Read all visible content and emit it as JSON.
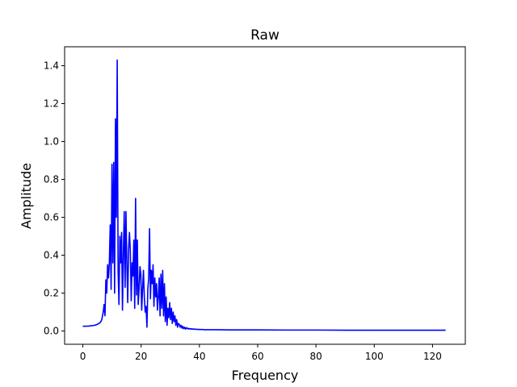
{
  "chart_data": {
    "type": "line",
    "title": "Raw",
    "xlabel": "Frequency",
    "ylabel": "Amplitude",
    "xlim": [
      -6.25,
      131.25
    ],
    "ylim": [
      -0.07,
      1.5
    ],
    "xticks": [
      0,
      20,
      40,
      60,
      80,
      100,
      120
    ],
    "yticks": [
      0.0,
      0.2,
      0.4,
      0.6,
      0.8,
      1.0,
      1.2,
      1.4
    ],
    "grid": false,
    "colors": {
      "line": "#0000ff",
      "axes": "#000000",
      "background": "#ffffff"
    },
    "series": [
      {
        "x": [
          0,
          2,
          4,
          5,
          6,
          6.5,
          7,
          7.3,
          7.6,
          7.9,
          8.2,
          8.5,
          8.8,
          9.1,
          9.4,
          9.7,
          10,
          10.3,
          10.6,
          10.9,
          11.2,
          11.5,
          11.8,
          12.1,
          12.4,
          12.7,
          13,
          13.3,
          13.6,
          13.9,
          14.2,
          14.5,
          14.8,
          15.1,
          15.4,
          15.7,
          16,
          16.3,
          16.6,
          16.9,
          17.2,
          17.5,
          17.8,
          18.1,
          18.4,
          18.7,
          19,
          19.3,
          19.6,
          19.9,
          20.2,
          20.5,
          20.8,
          21.1,
          21.4,
          21.7,
          22,
          22.3,
          22.6,
          22.9,
          23.2,
          23.5,
          23.8,
          24.1,
          24.4,
          24.7,
          25,
          25.3,
          25.6,
          25.9,
          26.2,
          26.5,
          26.8,
          27.1,
          27.4,
          27.7,
          28,
          28.3,
          28.6,
          28.9,
          29.2,
          29.5,
          29.8,
          30.1,
          30.4,
          30.7,
          31,
          31.3,
          31.6,
          31.9,
          32.2,
          32.5,
          32.8,
          33.1,
          33.4,
          33.7,
          34,
          34.3,
          34.6,
          34.9,
          35.2,
          35.5,
          35.8,
          36.1,
          36.4,
          36.7,
          37,
          37.3,
          37.6,
          37.9,
          38.2,
          38.5,
          38.8,
          39.1,
          39.4,
          39.7,
          40,
          40.3,
          40.6,
          40.9,
          41.2,
          41.5,
          41.8,
          42.1,
          42.4,
          42.7,
          43,
          44,
          46,
          50,
          60,
          70,
          80,
          90,
          100,
          110,
          120,
          124.5
        ],
        "y": [
          0.025,
          0.026,
          0.03,
          0.035,
          0.045,
          0.06,
          0.1,
          0.14,
          0.08,
          0.27,
          0.2,
          0.35,
          0.28,
          0.36,
          0.56,
          0.22,
          0.88,
          0.36,
          0.89,
          0.2,
          1.12,
          0.6,
          1.43,
          0.32,
          0.14,
          0.5,
          0.36,
          0.52,
          0.11,
          0.4,
          0.63,
          0.23,
          0.63,
          0.36,
          0.15,
          0.43,
          0.52,
          0.42,
          0.16,
          0.36,
          0.29,
          0.48,
          0.12,
          0.7,
          0.19,
          0.48,
          0.14,
          0.22,
          0.34,
          0.3,
          0.11,
          0.22,
          0.32,
          0.18,
          0.1,
          0.13,
          0.02,
          0.22,
          0.28,
          0.54,
          0.17,
          0.32,
          0.25,
          0.35,
          0.13,
          0.28,
          0.18,
          0.25,
          0.11,
          0.18,
          0.28,
          0.08,
          0.3,
          0.12,
          0.32,
          0.08,
          0.25,
          0.05,
          0.18,
          0.03,
          0.12,
          0.07,
          0.15,
          0.06,
          0.12,
          0.04,
          0.1,
          0.05,
          0.08,
          0.03,
          0.06,
          0.02,
          0.04,
          0.035,
          0.02,
          0.03,
          0.015,
          0.025,
          0.012,
          0.02,
          0.01,
          0.018,
          0.012,
          0.015,
          0.01,
          0.013,
          0.01,
          0.012,
          0.009,
          0.011,
          0.009,
          0.01,
          0.009,
          0.009,
          0.008,
          0.009,
          0.008,
          0.008,
          0.008,
          0.008,
          0.008,
          0.007,
          0.007,
          0.007,
          0.007,
          0.007,
          0.007,
          0.007,
          0.007,
          0.006,
          0.006,
          0.005,
          0.005,
          0.004,
          0.004,
          0.004,
          0.004,
          0.004
        ]
      }
    ]
  }
}
